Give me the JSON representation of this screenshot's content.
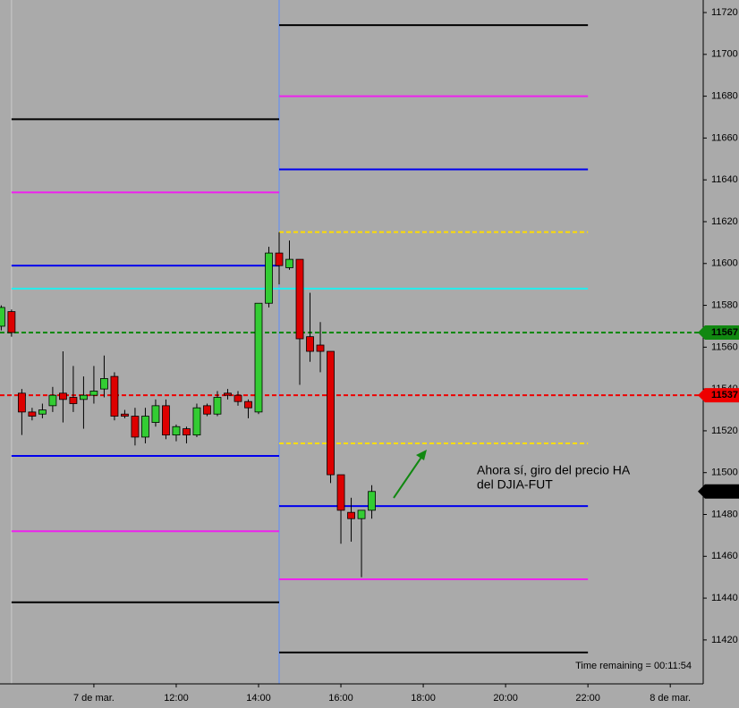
{
  "chart_data": {
    "type": "candlestick",
    "x": [
      7.75,
      8,
      8.25,
      8.5,
      8.75,
      9,
      9.25,
      9.5,
      9.75,
      10,
      10.25,
      10.5,
      10.75,
      11,
      11.25,
      11.5,
      11.75,
      12,
      12.25,
      12.5,
      12.75,
      13,
      13.25,
      13.5,
      13.75,
      14,
      14.25,
      14.5,
      14.75,
      15,
      15.25,
      15.5,
      15.75,
      16,
      16.25,
      16.5,
      16.75
    ],
    "open": [
      11570,
      11577,
      11538,
      11529,
      11528,
      11532,
      11538,
      11536,
      11535,
      11537,
      11540,
      11546,
      11528,
      11527,
      11517,
      11524,
      11532,
      11518,
      11521,
      11518,
      11532,
      11528,
      11538,
      11537,
      11534,
      11529,
      11581,
      11605,
      11598,
      11602,
      11565,
      11561,
      11558,
      11499,
      11481,
      11478,
      11482
    ],
    "high": [
      11580,
      11578,
      11540,
      11531,
      11533,
      11541,
      11558,
      11551,
      11546,
      11551,
      11556,
      11548,
      11530,
      11531,
      11531,
      11535,
      11535,
      11523,
      11522,
      11533,
      11533,
      11539,
      11540,
      11539,
      11535,
      11581,
      11608,
      11615,
      11611,
      11602,
      11586,
      11572,
      11558,
      11499,
      11488,
      11482,
      11494
    ],
    "low": [
      11568,
      11565,
      11518,
      11525,
      11526,
      11529,
      11524,
      11529,
      11521,
      11533,
      11536,
      11525,
      11526,
      11513,
      11514,
      11522,
      11516,
      11515,
      11514,
      11517,
      11527,
      11527,
      11535,
      11532,
      11526,
      11528,
      11579,
      11590,
      11597,
      11542,
      11553,
      11548,
      11495,
      11466,
      11467,
      11450,
      11478
    ],
    "close": [
      11579,
      11567,
      11529,
      11527,
      11530,
      11537,
      11535,
      11533,
      11537,
      11539,
      11545,
      11527,
      11527,
      11517,
      11527,
      11532,
      11518,
      11522,
      11518,
      11531,
      11528,
      11536,
      11537,
      11534,
      11531,
      11581,
      11605,
      11599,
      11602,
      11564,
      11558,
      11558,
      11499,
      11482,
      11478,
      11482,
      11491
    ],
    "up_color": "#33cc33",
    "down_color": "#dd0000",
    "xlim": [
      7.72,
      24.8
    ],
    "ylim": [
      11399,
      11726
    ],
    "xticks": [
      {
        "value": 10,
        "label": "7 de mar."
      },
      {
        "value": 12,
        "label": "12:00"
      },
      {
        "value": 14,
        "label": "14:00"
      },
      {
        "value": 16,
        "label": "16:00"
      },
      {
        "value": 18,
        "label": "18:00"
      },
      {
        "value": 20,
        "label": "20:00"
      },
      {
        "value": 22,
        "label": "22:00"
      },
      {
        "value": 24,
        "label": "8 de mar."
      }
    ],
    "yticks": [
      11420,
      11440,
      11460,
      11480,
      11500,
      11520,
      11540,
      11560,
      11580,
      11600,
      11620,
      11640,
      11660,
      11680,
      11700,
      11720
    ],
    "vlines": [
      {
        "x": 8,
        "color": "#cccccc"
      },
      {
        "x": 14.5,
        "color": "#5b8cff"
      }
    ],
    "levels": [
      {
        "value": 11669,
        "x": [
          8,
          14.5
        ],
        "color": "#000000",
        "dashed": false
      },
      {
        "value": 11634,
        "x": [
          8,
          14.5
        ],
        "color": "#ee22ee",
        "dashed": false
      },
      {
        "value": 11599,
        "x": [
          8,
          14.5
        ],
        "color": "#0000ee",
        "dashed": false
      },
      {
        "value": 11588,
        "x": [
          8,
          22
        ],
        "color": "#22eeee",
        "dashed": false
      },
      {
        "value": 11508,
        "x": [
          8,
          14.5
        ],
        "color": "#0000ee",
        "dashed": false
      },
      {
        "value": 11472,
        "x": [
          8,
          14.5
        ],
        "color": "#ee22ee",
        "dashed": false
      },
      {
        "value": 11438,
        "x": [
          8,
          14.5
        ],
        "color": "#000000",
        "dashed": false
      },
      {
        "value": 11714,
        "x": [
          14.5,
          22
        ],
        "color": "#000000",
        "dashed": false
      },
      {
        "value": 11680,
        "x": [
          14.5,
          22
        ],
        "color": "#ee22ee",
        "dashed": false
      },
      {
        "value": 11645,
        "x": [
          14.5,
          22
        ],
        "color": "#0000ee",
        "dashed": false
      },
      {
        "value": 11615,
        "x": [
          14.5,
          22
        ],
        "color": "#ffdd00",
        "dashed": true
      },
      {
        "value": 11514,
        "x": [
          14.5,
          22
        ],
        "color": "#ffdd00",
        "dashed": true
      },
      {
        "value": 11484,
        "x": [
          14.5,
          22
        ],
        "color": "#0000ee",
        "dashed": false
      },
      {
        "value": 11449,
        "x": [
          14.5,
          22
        ],
        "color": "#ee22ee",
        "dashed": false
      },
      {
        "value": 11414,
        "x": [
          14.5,
          22
        ],
        "color": "#000000",
        "dashed": false
      },
      {
        "value": 11567,
        "x": [
          7.72,
          24.8
        ],
        "color": "#008800",
        "dashed": true
      },
      {
        "value": 11537,
        "x": [
          7.72,
          24.8
        ],
        "color": "#ee0000",
        "dashed": true
      }
    ],
    "price_tags": [
      {
        "value": 11567,
        "color": "#118811"
      },
      {
        "value": 11537,
        "color": "#ee0000"
      },
      {
        "value": 11491,
        "color": "#000000"
      }
    ],
    "annotation": [
      "Ahora sí, giro del precio HA",
      "del DJIA-FUT"
    ],
    "status": "Time remaining = 00:11:54"
  }
}
